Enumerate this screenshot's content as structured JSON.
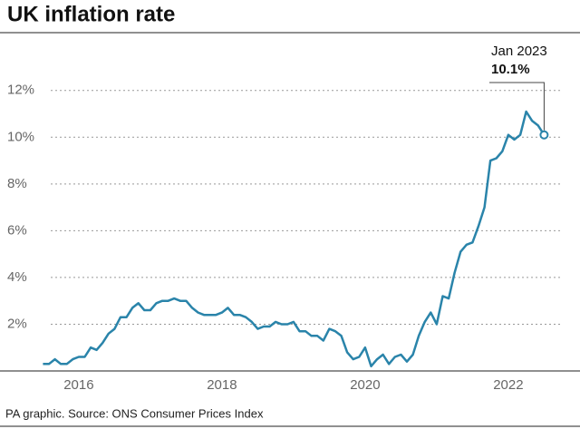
{
  "chart_data": {
    "type": "line",
    "title": "UK inflation rate",
    "source": "PA graphic. Source: ONS Consumer Prices Index",
    "annotation": {
      "text": "Jan 2023",
      "label": "10.1%"
    },
    "color": "#2a84aa",
    "x": [
      2016.0,
      2016.083,
      2016.167,
      2016.25,
      2016.333,
      2016.417,
      2016.5,
      2016.583,
      2016.667,
      2016.75,
      2016.833,
      2016.917,
      2017.0,
      2017.083,
      2017.167,
      2017.25,
      2017.333,
      2017.417,
      2017.5,
      2017.583,
      2017.667,
      2017.75,
      2017.833,
      2017.917,
      2018.0,
      2018.083,
      2018.167,
      2018.25,
      2018.333,
      2018.417,
      2018.5,
      2018.583,
      2018.667,
      2018.75,
      2018.833,
      2018.917,
      2019.0,
      2019.083,
      2019.167,
      2019.25,
      2019.333,
      2019.417,
      2019.5,
      2019.583,
      2019.667,
      2019.75,
      2019.833,
      2019.917,
      2020.0,
      2020.083,
      2020.167,
      2020.25,
      2020.333,
      2020.417,
      2020.5,
      2020.583,
      2020.667,
      2020.75,
      2020.833,
      2020.917,
      2021.0,
      2021.083,
      2021.167,
      2021.25,
      2021.333,
      2021.417,
      2021.5,
      2021.583,
      2021.667,
      2021.75,
      2021.833,
      2021.917,
      2022.0,
      2022.083,
      2022.167,
      2022.25,
      2022.333,
      2022.417,
      2022.5,
      2022.583,
      2022.667,
      2022.75,
      2022.833,
      2022.917,
      2023.0
    ],
    "values": [
      0.3,
      0.3,
      0.5,
      0.3,
      0.3,
      0.5,
      0.6,
      0.6,
      1.0,
      0.9,
      1.2,
      1.6,
      1.8,
      2.3,
      2.3,
      2.7,
      2.9,
      2.6,
      2.6,
      2.9,
      3.0,
      3.0,
      3.1,
      3.0,
      3.0,
      2.7,
      2.5,
      2.4,
      2.4,
      2.4,
      2.5,
      2.7,
      2.4,
      2.4,
      2.3,
      2.1,
      1.8,
      1.9,
      1.9,
      2.1,
      2.0,
      2.0,
      2.1,
      1.7,
      1.7,
      1.5,
      1.5,
      1.3,
      1.8,
      1.7,
      1.5,
      0.8,
      0.5,
      0.6,
      1.0,
      0.2,
      0.5,
      0.7,
      0.3,
      0.6,
      0.7,
      0.4,
      0.7,
      1.5,
      2.1,
      2.5,
      2.0,
      3.2,
      3.1,
      4.2,
      5.1,
      5.4,
      5.5,
      6.2,
      7.0,
      9.0,
      9.1,
      9.4,
      10.1,
      9.9,
      10.1,
      11.1,
      10.7,
      10.5,
      10.1
    ],
    "xlim": [
      2015.4,
      2023.4
    ],
    "xticks": [
      {
        "value": 2016.5,
        "label": "2016"
      },
      {
        "value": 2018.5,
        "label": "2018"
      },
      {
        "value": 2020.5,
        "label": "2020"
      },
      {
        "value": 2022.5,
        "label": "2022"
      }
    ],
    "ylim": [
      0,
      13
    ],
    "yticks": [
      {
        "value": 2,
        "label": "2%"
      },
      {
        "value": 4,
        "label": "4%"
      },
      {
        "value": 6,
        "label": "6%"
      },
      {
        "value": 8,
        "label": "8%"
      },
      {
        "value": 10,
        "label": "10%"
      },
      {
        "value": 12,
        "label": "12%"
      }
    ],
    "grid": true
  }
}
